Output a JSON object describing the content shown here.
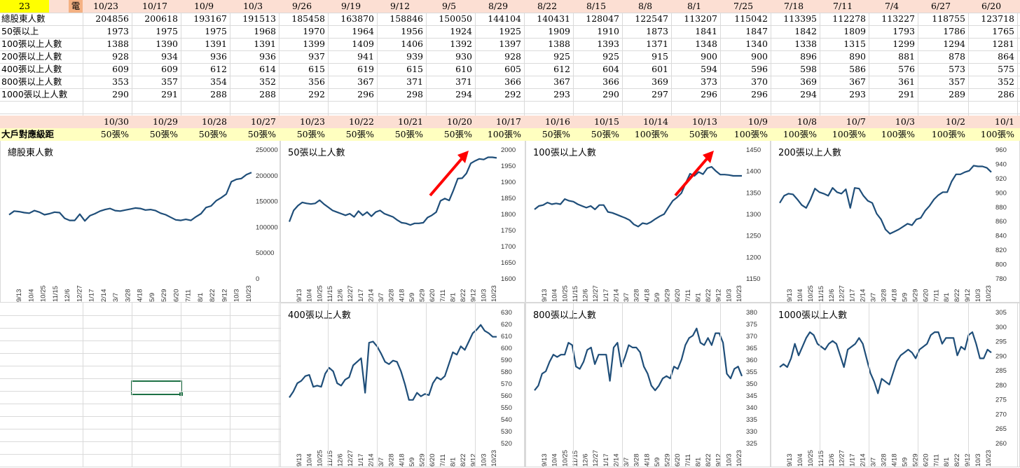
{
  "sheet": {
    "corner_value": "23",
    "corner_label": "電",
    "dates_top": [
      "10/23",
      "10/17",
      "10/9",
      "10/3",
      "9/26",
      "9/19",
      "9/12",
      "9/5",
      "8/29",
      "8/22",
      "8/15",
      "8/8",
      "8/1",
      "7/25",
      "7/18",
      "7/11",
      "7/4",
      "6/27",
      "6/20"
    ],
    "rows": [
      {
        "label": "總股東人數",
        "values": [
          "204856",
          "200618",
          "193167",
          "191513",
          "185458",
          "163870",
          "158846",
          "150050",
          "144104",
          "140431",
          "128047",
          "122547",
          "113207",
          "115042",
          "113395",
          "112278",
          "113227",
          "118755",
          "123718"
        ]
      },
      {
        "label": "50張以上",
        "values": [
          "1973",
          "1975",
          "1975",
          "1968",
          "1970",
          "1964",
          "1956",
          "1924",
          "1925",
          "1909",
          "1910",
          "1873",
          "1841",
          "1847",
          "1842",
          "1809",
          "1793",
          "1786",
          "1765"
        ]
      },
      {
        "label": "100張以上人數",
        "values": [
          "1388",
          "1390",
          "1391",
          "1391",
          "1399",
          "1409",
          "1406",
          "1392",
          "1397",
          "1388",
          "1393",
          "1371",
          "1348",
          "1340",
          "1338",
          "1315",
          "1299",
          "1294",
          "1281"
        ]
      },
      {
        "label": "200張以上人數",
        "values": [
          "928",
          "934",
          "936",
          "936",
          "937",
          "941",
          "939",
          "930",
          "928",
          "925",
          "925",
          "915",
          "900",
          "900",
          "896",
          "890",
          "881",
          "878",
          "864"
        ]
      },
      {
        "label": "400張以上人數",
        "values": [
          "609",
          "609",
          "612",
          "614",
          "615",
          "619",
          "615",
          "610",
          "605",
          "612",
          "604",
          "601",
          "594",
          "596",
          "598",
          "586",
          "576",
          "573",
          "575"
        ]
      },
      {
        "label": "800張以上人數",
        "values": [
          "353",
          "357",
          "354",
          "352",
          "356",
          "367",
          "371",
          "371",
          "366",
          "367",
          "366",
          "369",
          "373",
          "370",
          "369",
          "367",
          "361",
          "357",
          "352"
        ]
      },
      {
        "label": "1000張以上人數",
        "values": [
          "290",
          "291",
          "288",
          "288",
          "292",
          "296",
          "298",
          "294",
          "292",
          "293",
          "290",
          "297",
          "296",
          "296",
          "294",
          "293",
          "291",
          "289",
          "286"
        ]
      }
    ],
    "dates_bottom": [
      "10/30",
      "10/29",
      "10/28",
      "10/27",
      "10/23",
      "10/22",
      "10/21",
      "10/20",
      "10/17",
      "10/16",
      "10/15",
      "10/14",
      "10/13",
      "10/9",
      "10/8",
      "10/7",
      "10/3",
      "10/2",
      "10/1"
    ],
    "grade_label": "大戶對應級距",
    "grades": [
      "50張%",
      "50張%",
      "50張%",
      "50張%",
      "50張%",
      "50張%",
      "50張%",
      "50張%",
      "100張%",
      "50張%",
      "50張%",
      "100張%",
      "50張%",
      "100張%",
      "100張%",
      "100張%",
      "100張%",
      "100張%",
      "100張%"
    ]
  },
  "colors": {
    "line": "#1f4e79",
    "arrow": "#ff0000",
    "pink": "#fcdfd3",
    "yellow": "#ffffc0",
    "select": "#1e7145"
  },
  "x_ticks": [
    "9/13",
    "10/4",
    "10/25",
    "11/15",
    "12/6",
    "12/27",
    "1/17",
    "2/14",
    "3/7",
    "3/28",
    "4/18",
    "5/9",
    "5/29",
    "6/20",
    "7/11",
    "8/1",
    "8/22",
    "9/12",
    "10/3",
    "10/23"
  ],
  "chart_data": [
    {
      "type": "line",
      "title": "總股東人數",
      "ylim": [
        0,
        250000
      ],
      "yticks": [
        "0",
        "50000",
        "100000",
        "150000",
        "200000",
        "250000"
      ],
      "values": [
        123000,
        130000,
        129000,
        127000,
        126000,
        131000,
        128000,
        123000,
        125000,
        128000,
        127000,
        116000,
        112000,
        112000,
        124000,
        111000,
        121000,
        125000,
        130000,
        133000,
        135000,
        131000,
        130000,
        132000,
        134000,
        136000,
        135000,
        132000,
        133000,
        131000,
        126000,
        123000,
        118000,
        113000,
        112000,
        114000,
        112000,
        119000,
        125000,
        137000,
        140000,
        150000,
        156000,
        163000,
        187000,
        191513,
        193167,
        200618,
        204856
      ]
    },
    {
      "type": "line",
      "title": "50張以上人數",
      "ylim": [
        1600,
        2000
      ],
      "yticks": [
        "1600",
        "1650",
        "1700",
        "1750",
        "1800",
        "1850",
        "1900",
        "1950",
        "2000"
      ],
      "values": [
        1775,
        1810,
        1825,
        1835,
        1832,
        1830,
        1832,
        1842,
        1830,
        1820,
        1810,
        1805,
        1800,
        1795,
        1800,
        1790,
        1808,
        1795,
        1805,
        1792,
        1805,
        1810,
        1800,
        1795,
        1790,
        1780,
        1772,
        1770,
        1765,
        1770,
        1770,
        1772,
        1788,
        1795,
        1805,
        1840,
        1847,
        1841,
        1873,
        1909,
        1910,
        1925,
        1956,
        1964,
        1970,
        1968,
        1975,
        1975,
        1973
      ]
    },
    {
      "type": "line",
      "title": "100張以上人數",
      "ylim": [
        1150,
        1450
      ],
      "yticks": [
        "1150",
        "1200",
        "1250",
        "1300",
        "1350",
        "1400",
        "1450"
      ],
      "values": [
        1310,
        1318,
        1320,
        1326,
        1322,
        1324,
        1322,
        1334,
        1330,
        1328,
        1322,
        1318,
        1314,
        1318,
        1310,
        1320,
        1320,
        1304,
        1302,
        1298,
        1294,
        1290,
        1285,
        1275,
        1270,
        1278,
        1276,
        1281,
        1288,
        1294,
        1299,
        1315,
        1330,
        1338,
        1348,
        1371,
        1393,
        1388,
        1397,
        1392,
        1406,
        1409,
        1399,
        1391,
        1391,
        1390,
        1388,
        1388,
        1388
      ]
    },
    {
      "type": "line",
      "title": "200張以上人數",
      "ylim": [
        780,
        960
      ],
      "yticks": [
        "780",
        "800",
        "820",
        "840",
        "860",
        "880",
        "900",
        "920",
        "940",
        "960"
      ],
      "values": [
        885,
        895,
        898,
        897,
        890,
        882,
        878,
        890,
        905,
        900,
        898,
        895,
        906,
        900,
        898,
        904,
        878,
        906,
        905,
        895,
        888,
        885,
        870,
        862,
        848,
        842,
        845,
        848,
        852,
        856,
        854,
        862,
        864,
        874,
        881,
        890,
        896,
        900,
        900,
        915,
        925,
        925,
        928,
        930,
        937,
        936,
        936,
        934,
        928
      ]
    },
    {
      "type": "line",
      "title": "400張以上人數",
      "ylim": [
        520,
        630
      ],
      "yticks": [
        "520",
        "530",
        "540",
        "550",
        "560",
        "570",
        "580",
        "590",
        "600",
        "610",
        "620",
        "630"
      ],
      "values": [
        558,
        563,
        570,
        572,
        576,
        577,
        567,
        568,
        567,
        578,
        583,
        580,
        570,
        568,
        573,
        575,
        585,
        588,
        591,
        562,
        604,
        605,
        601,
        595,
        588,
        586,
        589,
        588,
        580,
        569,
        556,
        556,
        562,
        559,
        561,
        560,
        570,
        575,
        573,
        576,
        586,
        596,
        594,
        601,
        598,
        605,
        612,
        615,
        619,
        614,
        612,
        609,
        609
      ]
    },
    {
      "type": "line",
      "title": "800張以上人數",
      "ylim": [
        325,
        380
      ],
      "yticks": [
        "325",
        "330",
        "335",
        "340",
        "345",
        "350",
        "355",
        "360",
        "365",
        "370",
        "375",
        "380"
      ],
      "values": [
        347,
        349,
        354,
        355,
        359,
        362,
        361,
        362,
        362,
        367,
        366,
        357,
        356,
        359,
        364,
        365,
        358,
        362,
        362,
        362,
        351,
        365,
        367,
        357,
        361,
        366,
        365,
        365,
        363,
        357,
        354,
        349,
        347,
        349,
        352,
        353,
        352,
        357,
        356,
        360,
        366,
        369,
        370,
        373,
        367,
        366,
        369,
        366,
        371,
        371,
        367,
        354,
        352,
        356,
        357,
        353
      ]
    },
    {
      "type": "line",
      "title": "1000張以上人數",
      "ylim": [
        260,
        305
      ],
      "yticks": [
        "260",
        "265",
        "270",
        "275",
        "280",
        "285",
        "290",
        "295",
        "300",
        "305"
      ],
      "values": [
        286,
        287,
        286,
        289,
        294,
        290,
        293,
        296,
        298,
        297,
        294,
        293,
        292,
        294,
        295,
        294,
        290,
        286,
        292,
        293,
        294,
        296,
        294,
        289,
        284,
        281,
        277,
        282,
        281,
        280,
        284,
        288,
        290,
        291,
        292,
        291,
        289,
        292,
        293,
        294,
        297,
        298,
        298,
        294,
        296,
        296,
        296,
        290,
        293,
        292,
        297,
        298,
        294,
        289,
        289,
        292,
        291
      ]
    }
  ],
  "arrows": [
    {
      "chart": 1
    },
    {
      "chart": 2
    }
  ]
}
